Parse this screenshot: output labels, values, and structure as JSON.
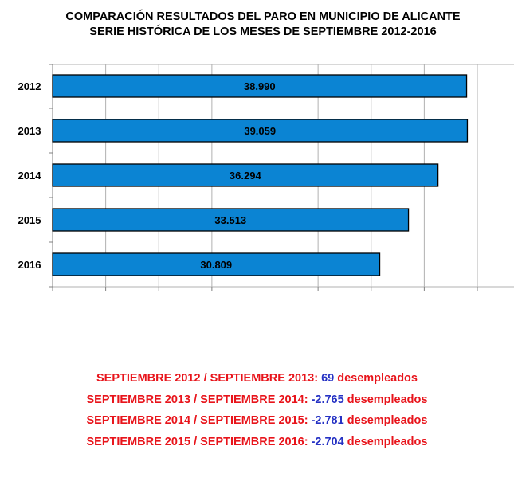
{
  "chart_data": {
    "type": "bar",
    "orientation": "horizontal",
    "title": "COMPARACIÓN RESULTADOS DEL PARO EN  MUNICIPIO DE ALICANTE",
    "subtitle": "SERIE HISTÓRICA DE LOS MESES DE SEPTIEMBRE 2012-2016",
    "categories": [
      "2012",
      "2013",
      "2014",
      "2015",
      "2016"
    ],
    "values": [
      38990,
      39059,
      36294,
      33513,
      30809
    ],
    "data_labels": [
      "38.990",
      "39.059",
      "36.294",
      "33.513",
      "30.809"
    ],
    "xlim": [
      0,
      45000
    ],
    "grid": true,
    "bar_color": "#0b84d3"
  },
  "summary": [
    {
      "period": "SEPTIEMBRE 2012 / SEPTIEMBRE 2013:",
      "value": "69",
      "unit": "desempleados"
    },
    {
      "period": "SEPTIEMBRE 2013 / SEPTIEMBRE 2014:",
      "value": "-2.765",
      "unit": "desempleados"
    },
    {
      "period": "SEPTIEMBRE 2014 /  SEPTIEMBRE 2015:",
      "value": "-2.781",
      "unit": "desempleados"
    },
    {
      "period": "SEPTIEMBRE 2015 / SEPTIEMBRE 2016:",
      "value": "-2.704",
      "unit": "desempleados"
    }
  ],
  "colors": {
    "period": "#e8141b",
    "value": "#2632c4",
    "unit": "#e8141b"
  }
}
